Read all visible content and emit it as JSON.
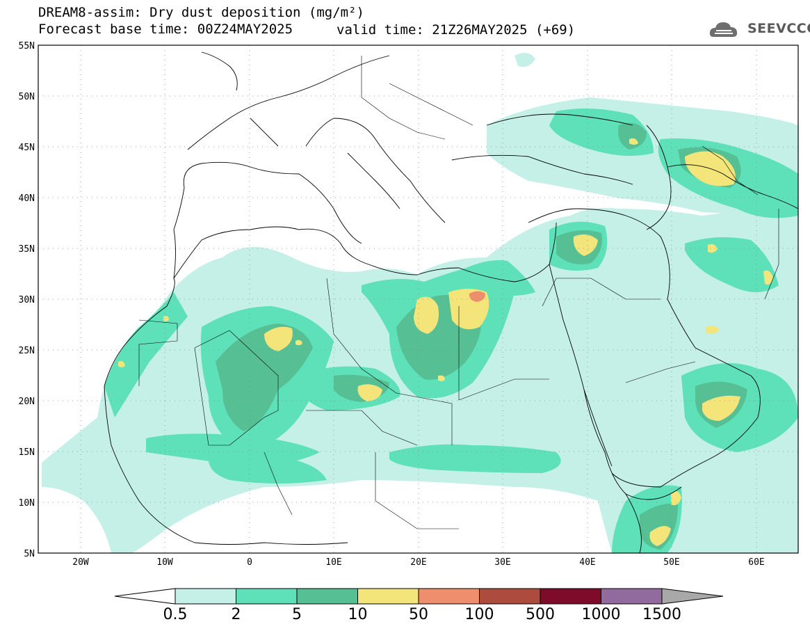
{
  "header": {
    "title_line1": "DREAM8-assim: Dry dust deposition (mg/m²)",
    "title_line2": "Forecast base time: 00Z24MAY2025",
    "valid_time": "valid time: 21Z26MAY2025 (+69)",
    "logo_text": "SEEVCCC",
    "logo_icon": "cloud-logo-icon"
  },
  "map": {
    "lat_labels": [
      "55N",
      "50N",
      "45N",
      "40N",
      "35N",
      "30N",
      "25N",
      "20N",
      "15N",
      "10N",
      "5N"
    ],
    "lon_labels": [
      "20W",
      "10W",
      "0",
      "10E",
      "20E",
      "30E",
      "40E",
      "50E",
      "60E"
    ],
    "lat_range": [
      5,
      55
    ],
    "lon_range": [
      -25,
      65
    ],
    "grid": "dotted"
  },
  "colorbar": {
    "labels": [
      "0.5",
      "2",
      "5",
      "10",
      "50",
      "100",
      "500",
      "1000",
      "1500"
    ],
    "colors": [
      "#c4f0e8",
      "#5ee0b8",
      "#56bf93",
      "#f3e57a",
      "#ef8e6d",
      "#ad4b3e",
      "#7e0b2a",
      "#916a9e"
    ],
    "under_color": "#ffffff",
    "over_color": "#a8a8a8"
  }
}
